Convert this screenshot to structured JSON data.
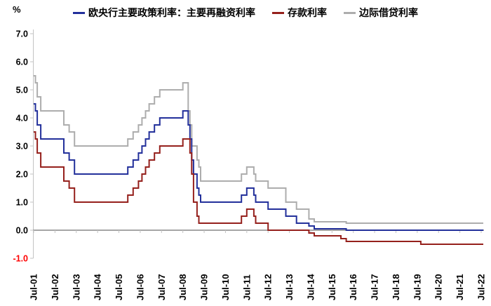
{
  "unit_label": "%",
  "legend": {
    "items": [
      {
        "label": "欧央行主要政策利率：主要再融资利率",
        "color": "#23309B"
      },
      {
        "label": "存款利率",
        "color": "#95201C"
      },
      {
        "label": "边际借贷利率",
        "color": "#ADADAD"
      }
    ]
  },
  "colors": {
    "axis_line": "#4d4d4d",
    "spine": "#C3C3C3",
    "tick": "#C3C3C3",
    "label": "#000000",
    "negative_label": "#FF0000",
    "background": "#ffffff"
  },
  "chart_data": {
    "type": "line",
    "step_mode": "step-after",
    "title": "",
    "xlabel": "",
    "ylabel": "%",
    "ylim": [
      -1.0,
      7.0
    ],
    "grid": false,
    "legend_position": "top-center",
    "y_tick_values": [
      7.0,
      6.0,
      5.0,
      4.0,
      3.0,
      2.0,
      1.0,
      0.0,
      -1.0
    ],
    "y_tick_labels": [
      "7.0",
      "6.0",
      "5.0",
      "4.0",
      "3.0",
      "2.0",
      "1.0",
      "0.0",
      "-1.0"
    ],
    "x_axis": {
      "unit": "months since Jul-2001",
      "total_months": 252,
      "tick_month_indices": [
        0,
        12,
        24,
        36,
        48,
        60,
        72,
        84,
        96,
        108,
        120,
        132,
        144,
        156,
        168,
        180,
        192,
        204,
        216,
        228,
        240,
        252
      ],
      "tick_labels": [
        "Jul-01",
        "Jul-02",
        "Jul-03",
        "Jul-04",
        "Jul-05",
        "Jul-06",
        "Jul-07",
        "Jul-08",
        "Jul-09",
        "Jul-10",
        "Jul-11",
        "Jul-12",
        "Jul-13",
        "Jul-14",
        "Jul-15",
        "Jul-16",
        "Jul-17",
        "Jul-18",
        "Jul-19",
        "Jul-20",
        "Jul-21",
        "Jul-22"
      ]
    },
    "series": [
      {
        "name": "欧央行主要政策利率：主要再融资利率",
        "color": "#23309B",
        "steps": [
          [
            0,
            4.5
          ],
          [
            1,
            4.25
          ],
          [
            2,
            3.75
          ],
          [
            4,
            3.25
          ],
          [
            17,
            2.75
          ],
          [
            20,
            2.5
          ],
          [
            23,
            2.0
          ],
          [
            53,
            2.25
          ],
          [
            56,
            2.5
          ],
          [
            59,
            2.75
          ],
          [
            61,
            3.0
          ],
          [
            63,
            3.25
          ],
          [
            65,
            3.5
          ],
          [
            68,
            3.75
          ],
          [
            71,
            4.0
          ],
          [
            84,
            4.25
          ],
          [
            87,
            3.75
          ],
          [
            88,
            3.25
          ],
          [
            89,
            2.5
          ],
          [
            90,
            2.0
          ],
          [
            92,
            1.5
          ],
          [
            93,
            1.25
          ],
          [
            94,
            1.0
          ],
          [
            117,
            1.25
          ],
          [
            120,
            1.5
          ],
          [
            124,
            1.25
          ],
          [
            125,
            1.0
          ],
          [
            132,
            0.75
          ],
          [
            142,
            0.5
          ],
          [
            148,
            0.25
          ],
          [
            155,
            0.15
          ],
          [
            158,
            0.05
          ],
          [
            176,
            0.0
          ],
          [
            252,
            0.0
          ]
        ]
      },
      {
        "name": "存款利率",
        "color": "#95201C",
        "steps": [
          [
            0,
            3.5
          ],
          [
            1,
            3.25
          ],
          [
            2,
            2.75
          ],
          [
            4,
            2.25
          ],
          [
            17,
            1.75
          ],
          [
            20,
            1.5
          ],
          [
            23,
            1.0
          ],
          [
            53,
            1.25
          ],
          [
            56,
            1.5
          ],
          [
            59,
            1.75
          ],
          [
            61,
            2.0
          ],
          [
            63,
            2.25
          ],
          [
            65,
            2.5
          ],
          [
            68,
            2.75
          ],
          [
            71,
            3.0
          ],
          [
            84,
            3.25
          ],
          [
            88,
            2.75
          ],
          [
            89,
            2.0
          ],
          [
            90,
            1.0
          ],
          [
            92,
            0.5
          ],
          [
            93,
            0.25
          ],
          [
            117,
            0.5
          ],
          [
            120,
            0.75
          ],
          [
            124,
            0.5
          ],
          [
            125,
            0.25
          ],
          [
            132,
            0.0
          ],
          [
            155,
            -0.1
          ],
          [
            158,
            -0.2
          ],
          [
            173,
            -0.3
          ],
          [
            176,
            -0.4
          ],
          [
            218,
            -0.5
          ],
          [
            252,
            -0.5
          ]
        ]
      },
      {
        "name": "边际借贷利率",
        "color": "#ADADAD",
        "steps": [
          [
            0,
            5.5
          ],
          [
            1,
            5.25
          ],
          [
            2,
            4.75
          ],
          [
            4,
            4.25
          ],
          [
            17,
            3.75
          ],
          [
            20,
            3.5
          ],
          [
            23,
            3.0
          ],
          [
            53,
            3.25
          ],
          [
            56,
            3.5
          ],
          [
            59,
            3.75
          ],
          [
            61,
            4.0
          ],
          [
            63,
            4.25
          ],
          [
            65,
            4.5
          ],
          [
            68,
            4.75
          ],
          [
            71,
            5.0
          ],
          [
            84,
            5.25
          ],
          [
            87,
            4.25
          ],
          [
            88,
            3.75
          ],
          [
            89,
            3.0
          ],
          [
            92,
            2.5
          ],
          [
            93,
            2.25
          ],
          [
            94,
            1.75
          ],
          [
            117,
            2.0
          ],
          [
            120,
            2.25
          ],
          [
            124,
            2.0
          ],
          [
            125,
            1.75
          ],
          [
            132,
            1.5
          ],
          [
            142,
            1.0
          ],
          [
            148,
            0.75
          ],
          [
            155,
            0.4
          ],
          [
            158,
            0.3
          ],
          [
            176,
            0.25
          ],
          [
            252,
            0.25
          ]
        ]
      }
    ]
  }
}
